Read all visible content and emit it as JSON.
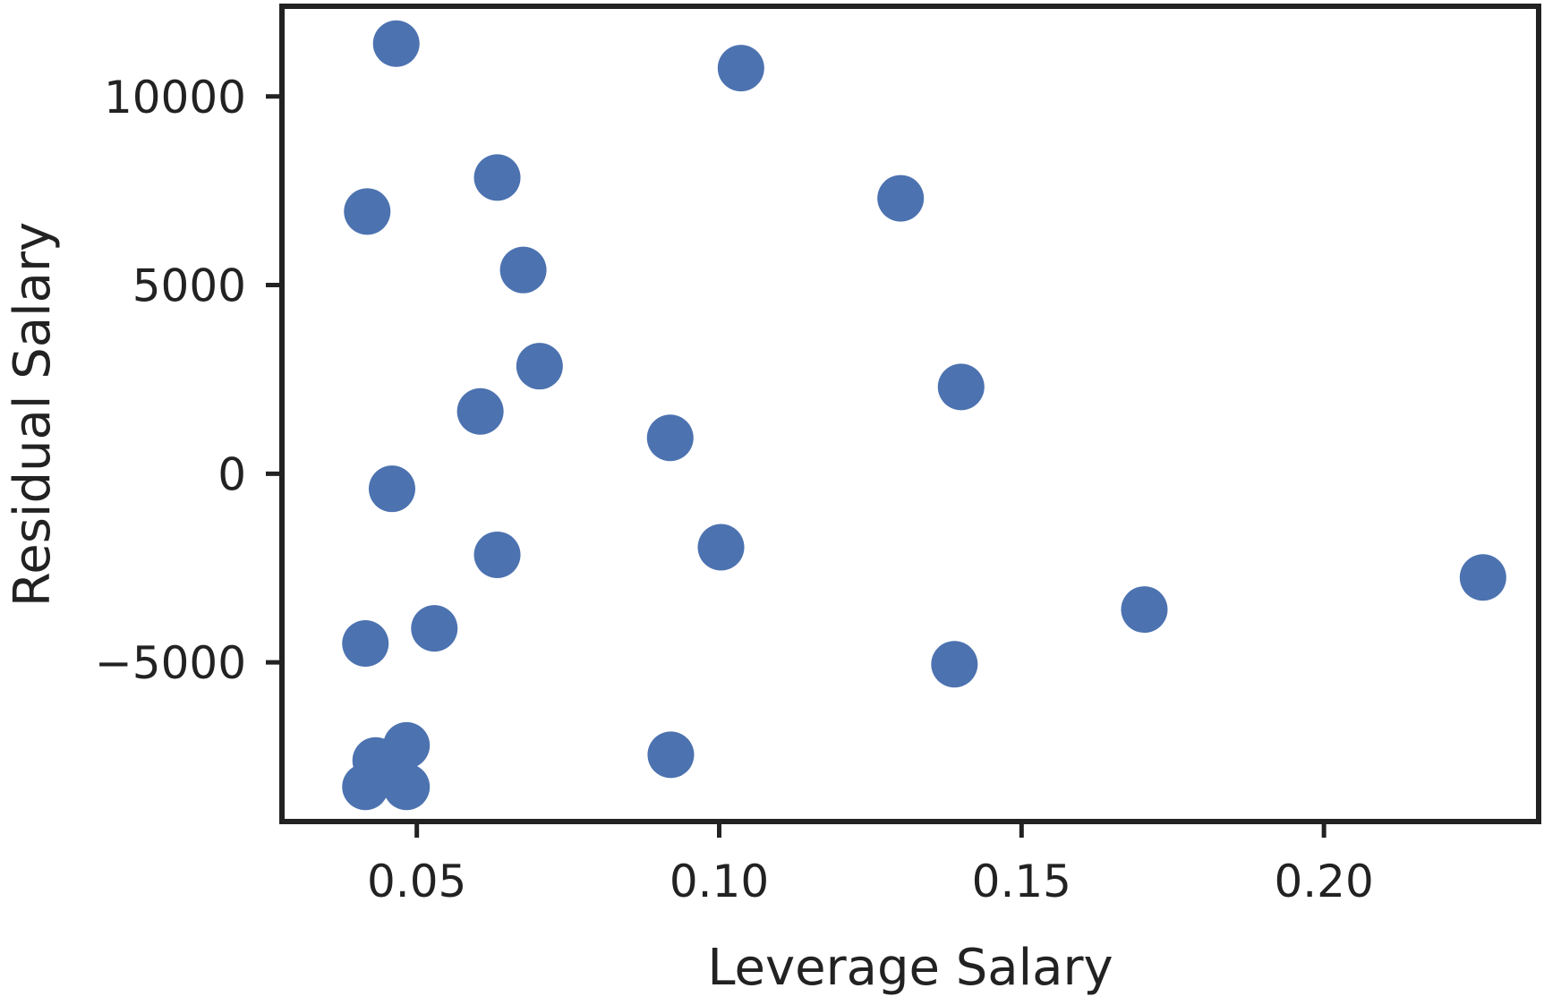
{
  "chart_data": {
    "type": "scatter",
    "title": "",
    "xlabel": "Leverage Salary",
    "ylabel": "Residual Salary",
    "xlim": [
      0.0277,
      0.2355
    ],
    "ylim": [
      -9220,
      12390
    ],
    "xticks": [
      0.05,
      0.1,
      0.15,
      0.2
    ],
    "xtick_labels": [
      "0.05",
      "0.10",
      "0.15",
      "0.20"
    ],
    "yticks": [
      -5000,
      0,
      5000,
      10000
    ],
    "ytick_labels": [
      "−5000",
      "0",
      "5000",
      "10000"
    ],
    "grid": false,
    "marker_color": "#4c72b0",
    "points": [
      {
        "x": 0.0466,
        "y": 11400
      },
      {
        "x": 0.1036,
        "y": 10750
      },
      {
        "x": 0.0633,
        "y": 7850
      },
      {
        "x": 0.0418,
        "y": 6950
      },
      {
        "x": 0.13,
        "y": 7300
      },
      {
        "x": 0.0676,
        "y": 5400
      },
      {
        "x": 0.0703,
        "y": 2850
      },
      {
        "x": 0.14,
        "y": 2300
      },
      {
        "x": 0.0605,
        "y": 1650
      },
      {
        "x": 0.0919,
        "y": 950
      },
      {
        "x": 0.0459,
        "y": -400
      },
      {
        "x": 0.1003,
        "y": -1950
      },
      {
        "x": 0.0633,
        "y": -2150
      },
      {
        "x": 0.2263,
        "y": -2750
      },
      {
        "x": 0.1703,
        "y": -3600
      },
      {
        "x": 0.0529,
        "y": -4100
      },
      {
        "x": 0.0415,
        "y": -4500
      },
      {
        "x": 0.1389,
        "y": -5050
      },
      {
        "x": 0.0483,
        "y": -7200
      },
      {
        "x": 0.092,
        "y": -7450
      },
      {
        "x": 0.0432,
        "y": -7600
      },
      {
        "x": 0.0415,
        "y": -8300
      },
      {
        "x": 0.0483,
        "y": -8300
      }
    ]
  }
}
